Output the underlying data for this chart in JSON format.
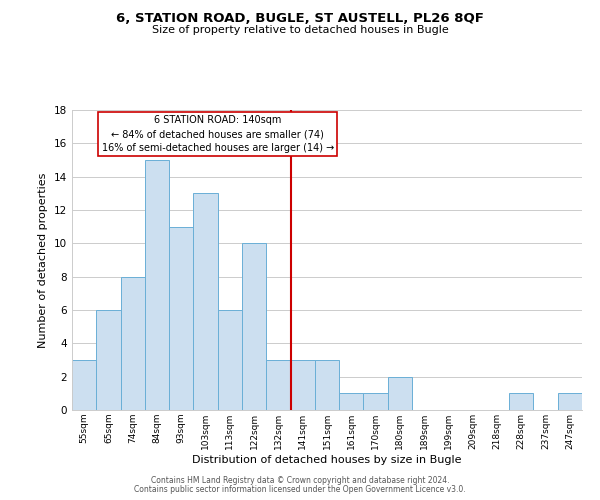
{
  "title": "6, STATION ROAD, BUGLE, ST AUSTELL, PL26 8QF",
  "subtitle": "Size of property relative to detached houses in Bugle",
  "xlabel": "Distribution of detached houses by size in Bugle",
  "ylabel": "Number of detached properties",
  "bar_color": "#ccdff0",
  "bar_edge_color": "#6aafd6",
  "bin_labels": [
    "55sqm",
    "65sqm",
    "74sqm",
    "84sqm",
    "93sqm",
    "103sqm",
    "113sqm",
    "122sqm",
    "132sqm",
    "141sqm",
    "151sqm",
    "161sqm",
    "170sqm",
    "180sqm",
    "189sqm",
    "199sqm",
    "209sqm",
    "218sqm",
    "228sqm",
    "237sqm",
    "247sqm"
  ],
  "bar_heights": [
    3,
    6,
    8,
    15,
    11,
    13,
    6,
    10,
    3,
    3,
    3,
    1,
    1,
    2,
    0,
    0,
    0,
    0,
    1,
    0,
    1
  ],
  "vline_x": 8.5,
  "vline_color": "#cc0000",
  "ylim": [
    0,
    18
  ],
  "yticks": [
    0,
    2,
    4,
    6,
    8,
    10,
    12,
    14,
    16,
    18
  ],
  "annotation_title": "6 STATION ROAD: 140sqm",
  "annotation_line1": "← 84% of detached houses are smaller (74)",
  "annotation_line2": "16% of semi-detached houses are larger (14) →",
  "footer1": "Contains HM Land Registry data © Crown copyright and database right 2024.",
  "footer2": "Contains public sector information licensed under the Open Government Licence v3.0.",
  "background_color": "#ffffff",
  "grid_color": "#cccccc"
}
